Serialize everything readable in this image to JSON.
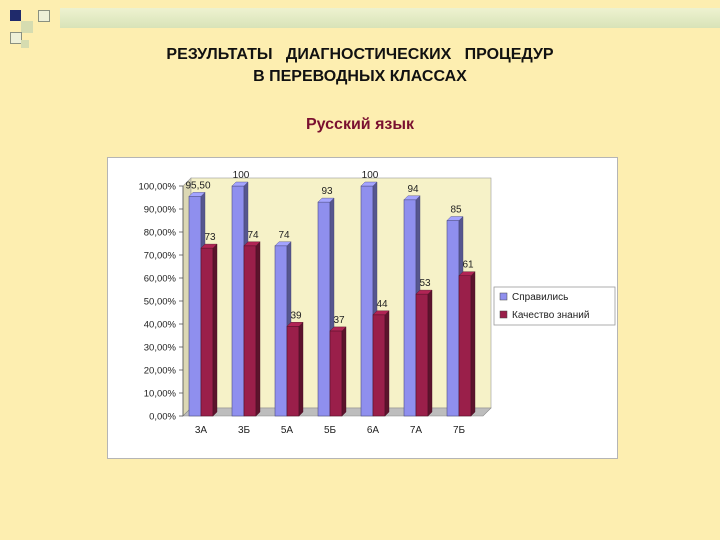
{
  "slide": {
    "title_line1": "РЕЗУЛЬТАТЫ   ДИАГНОСТИЧЕСКИХ   ПРОЦЕДУР",
    "title_line2": "В ПЕРЕВОДНЫХ КЛАССАХ",
    "subtitle": "Русский язык"
  },
  "colors": {
    "background": "#fdeeb0",
    "series1": "#8f8fee",
    "series2": "#9a1f4a",
    "plot_wall": "#f6f2c8"
  },
  "chart_data": {
    "type": "bar",
    "title": "",
    "xlabel": "",
    "ylabel": "",
    "categories": [
      "3А",
      "3Б",
      "5А",
      "5Б",
      "6А",
      "7А",
      "7Б"
    ],
    "ylim": [
      0,
      100
    ],
    "yticks": [
      "0,00%",
      "10,00%",
      "20,00%",
      "30,00%",
      "40,00%",
      "50,00%",
      "60,00%",
      "70,00%",
      "80,00%",
      "90,00%",
      "100,00%"
    ],
    "series": [
      {
        "name": "Справились",
        "values": [
          95.5,
          100,
          74,
          93,
          100,
          94,
          85
        ],
        "labels": [
          "95,50",
          "100",
          "74",
          "93",
          "100",
          "94",
          "85"
        ]
      },
      {
        "name": "Качество знаний",
        "values": [
          73,
          74,
          39,
          37,
          44,
          53,
          61
        ],
        "labels": [
          "73",
          "74",
          "39",
          "37",
          "44",
          "53",
          "61"
        ]
      }
    ],
    "grid": false,
    "legend": "right"
  }
}
